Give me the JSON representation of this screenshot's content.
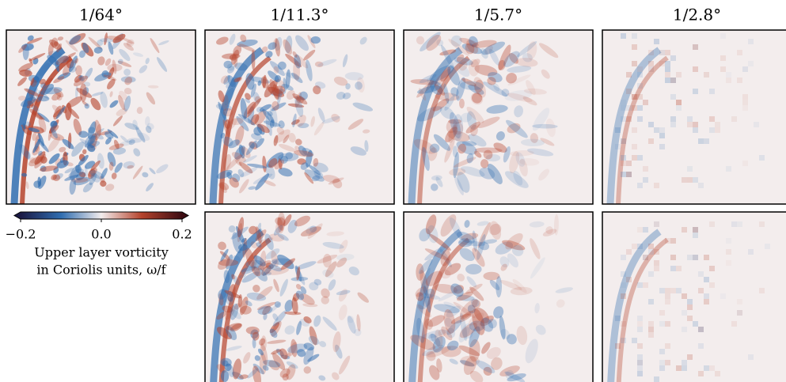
{
  "chart_data": {
    "type": "heatmap",
    "columns": [
      "1/64°",
      "1/11.3°",
      "1/5.7°",
      "1/2.8°"
    ],
    "colorbar": {
      "clim": [
        -0.2,
        0.2
      ],
      "ticks": [
        {
          "value": -0.2,
          "label": "−0.2"
        },
        {
          "value": 0,
          "label": "0.0"
        },
        {
          "value": 0.2,
          "label": "0.2"
        }
      ],
      "label": [
        "Upper layer vorticity",
        "in Coriolis units, ω/f"
      ],
      "colors": [
        "#1b1a45",
        "#2f6db0",
        "#f2ecec",
        "#b5432c",
        "#3c0c12"
      ]
    }
  }
}
